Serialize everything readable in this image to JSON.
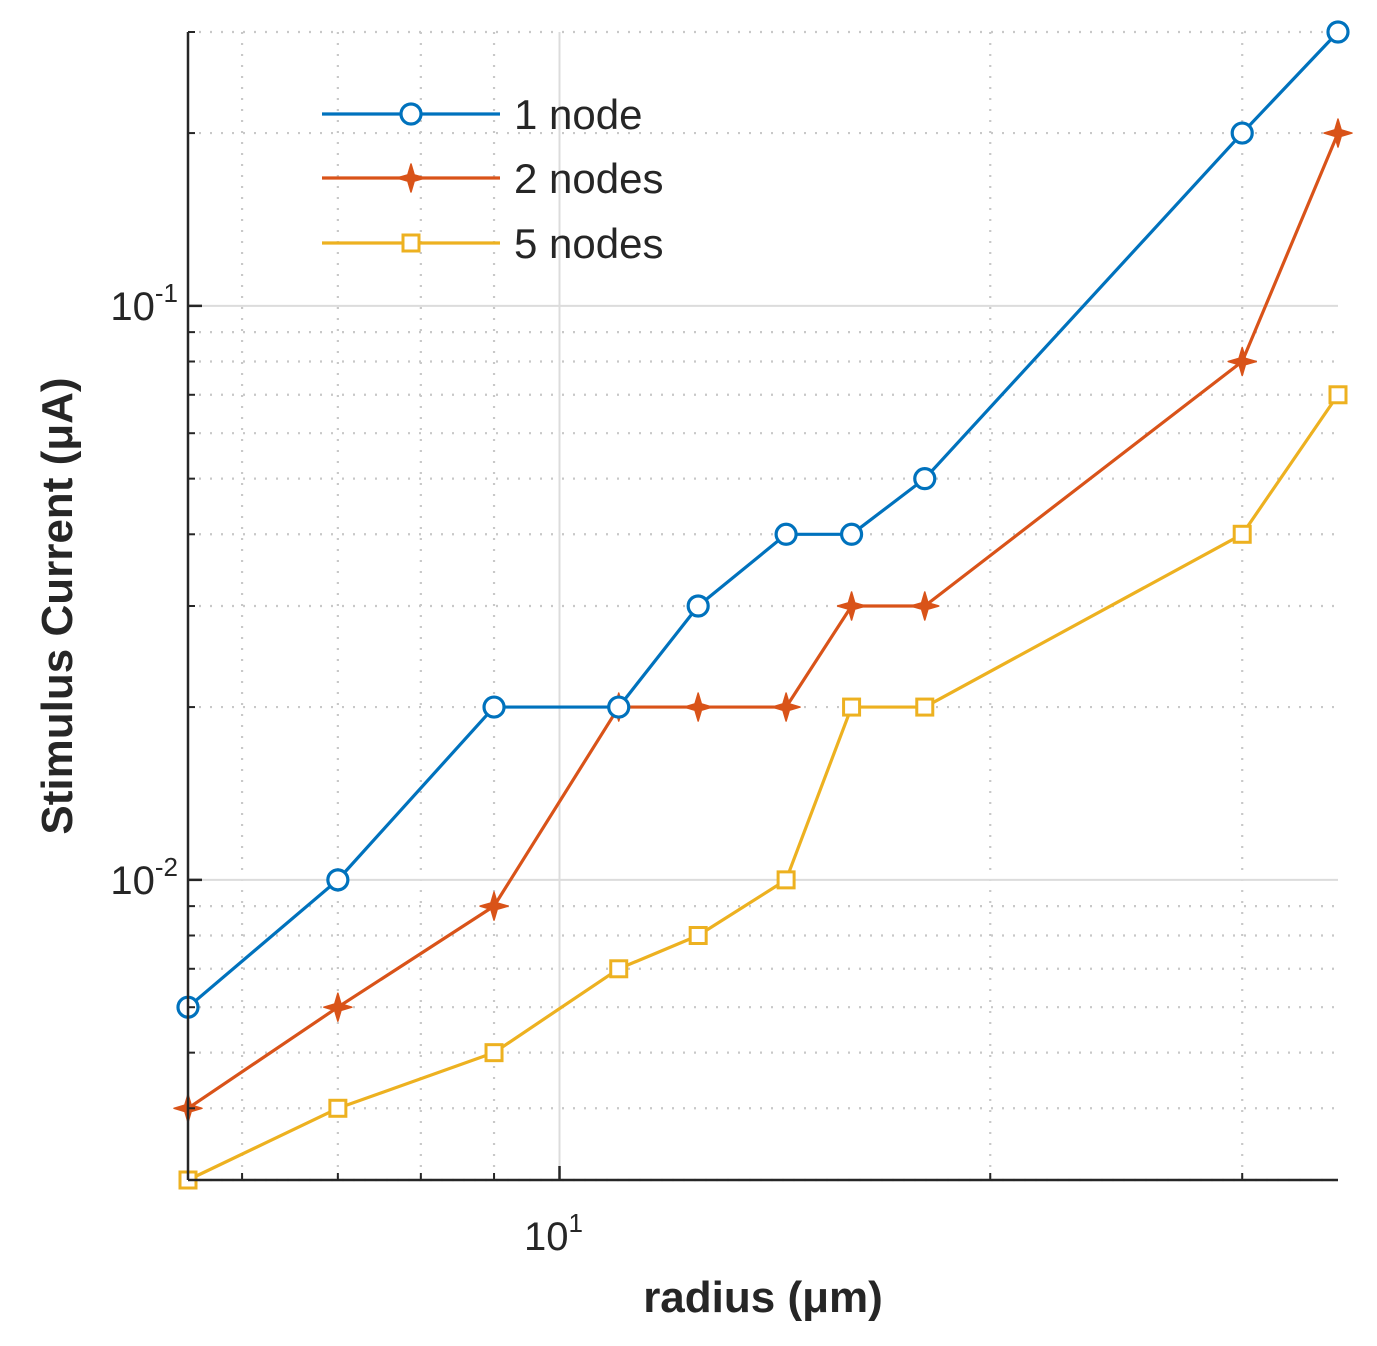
{
  "chart_data": {
    "type": "line",
    "xscale": "log",
    "yscale": "log",
    "xlim": [
      5.5,
      35
    ],
    "ylim": [
      0.003,
      0.3
    ],
    "xlabel": "radius (μm)",
    "ylabel": "Stimulus Current (μA)",
    "grid": true,
    "legend_position": "top-left",
    "x_ticks": [
      {
        "base": "10",
        "exp": "1",
        "value": 10
      }
    ],
    "y_ticks": [
      {
        "base": "10",
        "exp": "-2",
        "value": 0.01
      },
      {
        "base": "10",
        "exp": "-1",
        "value": 0.1
      }
    ],
    "series": [
      {
        "name": "1 node",
        "color": "#0072BD",
        "marker": "circle",
        "x": [
          5.5,
          7,
          9,
          11,
          12.5,
          14.4,
          16,
          18,
          30,
          35
        ],
        "y": [
          0.006,
          0.01,
          0.02,
          0.02,
          0.03,
          0.04,
          0.04,
          0.05,
          0.2,
          0.3
        ]
      },
      {
        "name": "2 nodes",
        "color": "#D95319",
        "marker": "star",
        "x": [
          5.5,
          7,
          9,
          11,
          12.5,
          14.4,
          16,
          18,
          30,
          35
        ],
        "y": [
          0.004,
          0.006,
          0.009,
          0.02,
          0.02,
          0.02,
          0.03,
          0.03,
          0.08,
          0.2
        ]
      },
      {
        "name": "5 nodes",
        "color": "#EDB120",
        "marker": "square",
        "x": [
          5.5,
          7,
          9,
          11,
          12.5,
          14.4,
          16,
          18,
          30,
          35
        ],
        "y": [
          0.003,
          0.004,
          0.005,
          0.007,
          0.008,
          0.01,
          0.02,
          0.02,
          0.04,
          0.07
        ]
      }
    ]
  }
}
